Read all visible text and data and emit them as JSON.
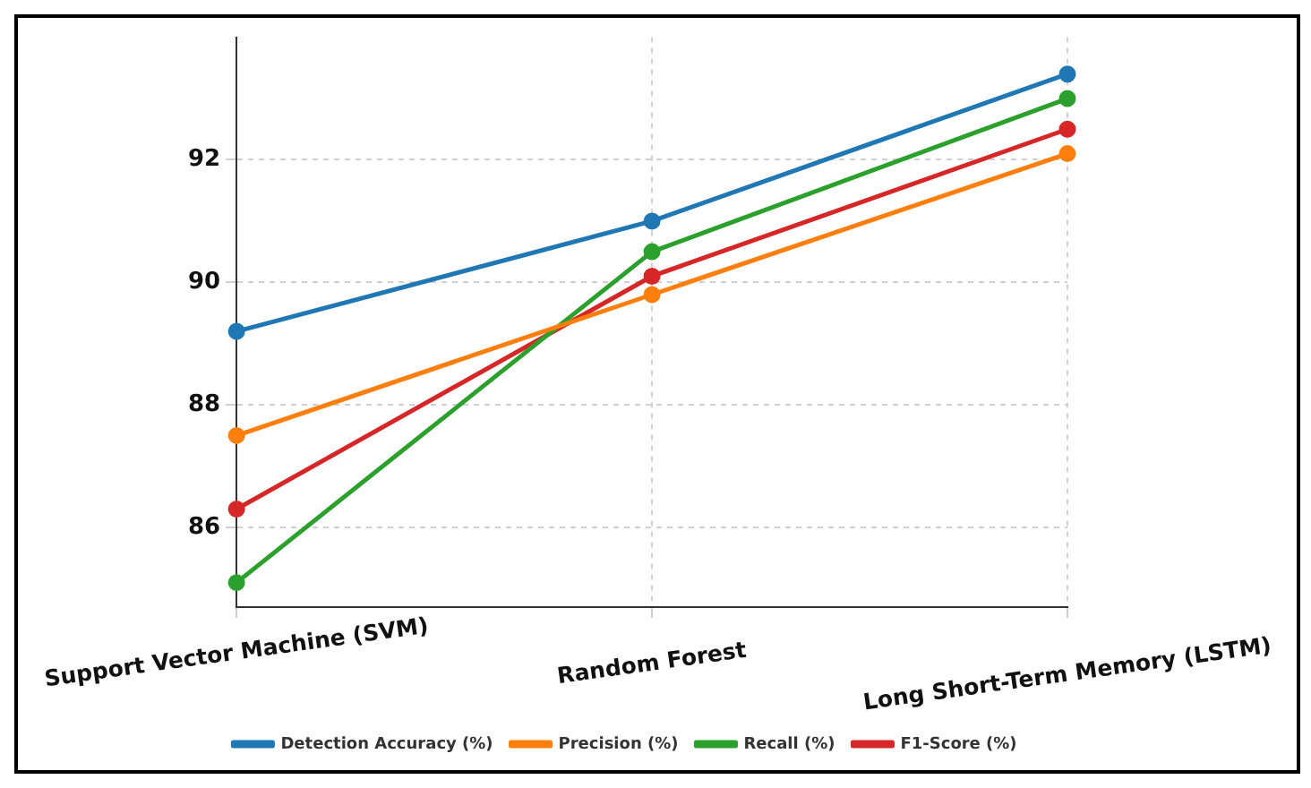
{
  "chart_data": {
    "type": "line",
    "categories": [
      "Support Vector Machine (SVM)",
      "Random Forest",
      "Long Short-Term Memory (LSTM)"
    ],
    "series": [
      {
        "name": "Detection Accuracy (%)",
        "color": "#1f77b4",
        "values": [
          89.2,
          91.0,
          93.4
        ]
      },
      {
        "name": "Precision (%)",
        "color": "#ff7f0e",
        "values": [
          87.5,
          89.8,
          92.1
        ]
      },
      {
        "name": "Recall (%)",
        "color": "#2ca02c",
        "values": [
          85.1,
          90.5,
          93.0
        ]
      },
      {
        "name": "F1-Score (%)",
        "color": "#d62728",
        "values": [
          86.3,
          90.1,
          92.5
        ]
      }
    ],
    "ylim": [
      84.7,
      94.0
    ],
    "yticks": [
      86,
      88,
      90,
      92
    ],
    "grid": true,
    "legend": "bottom",
    "marker": "circle",
    "line_style": "solid"
  }
}
